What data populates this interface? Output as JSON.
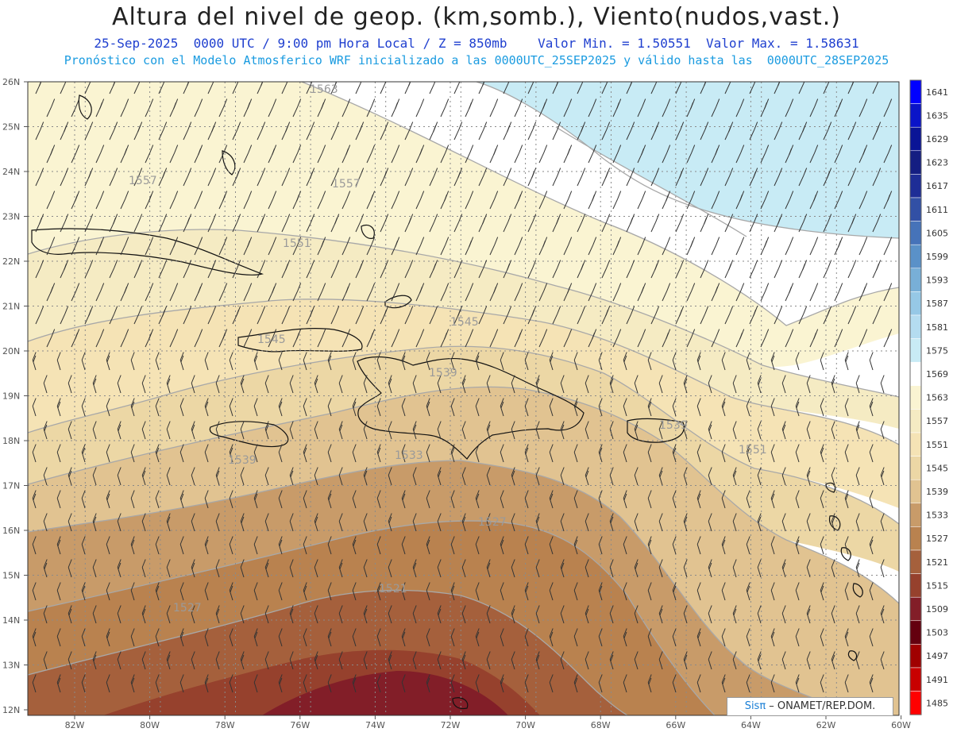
{
  "title": "Altura del nivel de geop. (km,somb.), Viento(nudos,vast.)",
  "subtitle": "25-Sep-2025  0000 UTC / 9:00 pm Hora Local / Z = 850mb    Valor Min. = 1.50551  Valor Max. = 1.58631",
  "subtitle2": "Pronóstico con el Modelo Atmosferico WRF inicializado a las 0000UTC_25SEP2025 y válido hasta las  0000UTC_28SEP2025",
  "credit_brand": "Sisπ",
  "credit_text": " – ONAMET/REP.DOM.",
  "lat_labels": [
    "26N",
    "25N",
    "24N",
    "23N",
    "22N",
    "21N",
    "20N",
    "19N",
    "18N",
    "17N",
    "16N",
    "15N",
    "14N",
    "13N",
    "12N"
  ],
  "lon_labels": [
    "82W",
    "80W",
    "78W",
    "76W",
    "74W",
    "72W",
    "70W",
    "68W",
    "66W",
    "64W",
    "62W",
    "60W"
  ],
  "contour_labels": [
    "1563",
    "1557",
    "1557",
    "1551",
    "1545",
    "1545",
    "1539",
    "1539",
    "1539",
    "1533",
    "1527",
    "1527",
    "1521",
    "1551"
  ],
  "legend": {
    "levels": [
      "1641",
      "1635",
      "1629",
      "1623",
      "1617",
      "1611",
      "1605",
      "1599",
      "1593",
      "1587",
      "1581",
      "1575",
      "1569",
      "1563",
      "1557",
      "1551",
      "1545",
      "1539",
      "1533",
      "1527",
      "1521",
      "1515",
      "1509",
      "1503",
      "1497",
      "1491",
      "1485"
    ],
    "colors": [
      "#0000ff",
      "#0a14c8",
      "#0a1496",
      "#141e82",
      "#1e2d96",
      "#3250a5",
      "#4673b9",
      "#5a91c8",
      "#78afd7",
      "#96c8e6",
      "#b4dcf0",
      "#c8ebf5",
      "#ffffff",
      "#faf4d2",
      "#f5ebc3",
      "#f5e3b5",
      "#ecd7a5",
      "#e1c391",
      "#c89b69",
      "#b9824f",
      "#a5603c",
      "#96412d",
      "#821e28",
      "#64000f",
      "#a00000",
      "#c80000",
      "#ff0000"
    ]
  },
  "bands": {
    "colors": [
      "#c8ebf5",
      "#ffffff",
      "#faf4d2",
      "#f5ebc3",
      "#f5e3b5",
      "#ecd7a5",
      "#e1c391",
      "#c89b69",
      "#b9824f",
      "#a5603c",
      "#96412d",
      "#821e28"
    ]
  }
}
